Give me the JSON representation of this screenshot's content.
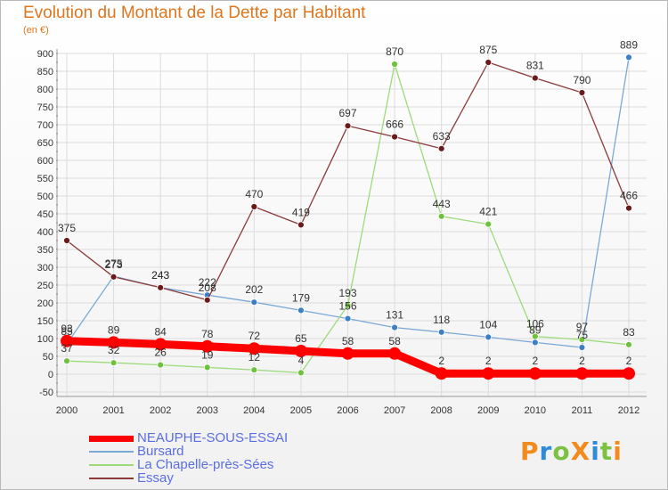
{
  "chart_data": {
    "type": "line",
    "title": "Evolution du Montant de la Dette par Habitant",
    "subtitle": "(en €)",
    "x": [
      "2000",
      "2001",
      "2002",
      "2003",
      "2004",
      "2005",
      "2006",
      "2007",
      "2008",
      "2009",
      "2010",
      "2011",
      "2012"
    ],
    "yticks": [
      -50,
      0,
      50,
      100,
      150,
      200,
      250,
      300,
      350,
      400,
      450,
      500,
      550,
      600,
      650,
      700,
      750,
      800,
      850,
      900
    ],
    "ylim": [
      -50,
      900
    ],
    "grid": true,
    "legend_position": "bottom-left",
    "series": [
      {
        "name": "NEAUPHE-SOUS-ESSAI",
        "color": "#ff0000",
        "emphasis": true,
        "values": [
          93,
          89,
          84,
          78,
          72,
          65,
          58,
          58,
          2,
          2,
          2,
          2,
          2
        ],
        "labels": [
          "93",
          "89",
          "84",
          "78",
          "72",
          "65",
          "58",
          "58",
          "2",
          "2",
          "2",
          "2",
          "2"
        ]
      },
      {
        "name": "Bursard",
        "color": "#7aa9d6",
        "point_color": "#3d7fc4",
        "values": [
          85,
          275,
          243,
          222,
          202,
          179,
          156,
          131,
          118,
          104,
          89,
          75,
          889
        ],
        "labels": [
          "85",
          "275",
          "243",
          "222",
          "202",
          "179",
          "156",
          "131",
          "118",
          "104",
          "89",
          "75",
          "889"
        ]
      },
      {
        "name": "La Chapelle-près-Sées",
        "color": "#9ddb7a",
        "point_color": "#6fc23d",
        "values": [
          37,
          32,
          26,
          19,
          12,
          4,
          193,
          870,
          443,
          421,
          106,
          97,
          83
        ],
        "labels": [
          "37",
          "32",
          "26",
          "19",
          "12",
          "4",
          "193",
          "870",
          "443",
          "421",
          "106",
          "97",
          "83"
        ]
      },
      {
        "name": "Essay",
        "color": "#8b3a3a",
        "point_color": "#6a1a1a",
        "values": [
          375,
          273,
          243,
          208,
          470,
          419,
          697,
          666,
          633,
          875,
          831,
          790,
          466
        ],
        "labels": [
          "375",
          "273",
          "243",
          "208",
          "470",
          "419",
          "697",
          "666",
          "633",
          "875",
          "831",
          "790",
          "466"
        ]
      }
    ]
  },
  "branding": {
    "logo_text": "ProXiti",
    "logo_colors": [
      "#f28b1e",
      "#2e8bd8",
      "#7cc242",
      "#f28b1e",
      "#2e8bd8",
      "#7cc242",
      "#f28b1e"
    ]
  }
}
